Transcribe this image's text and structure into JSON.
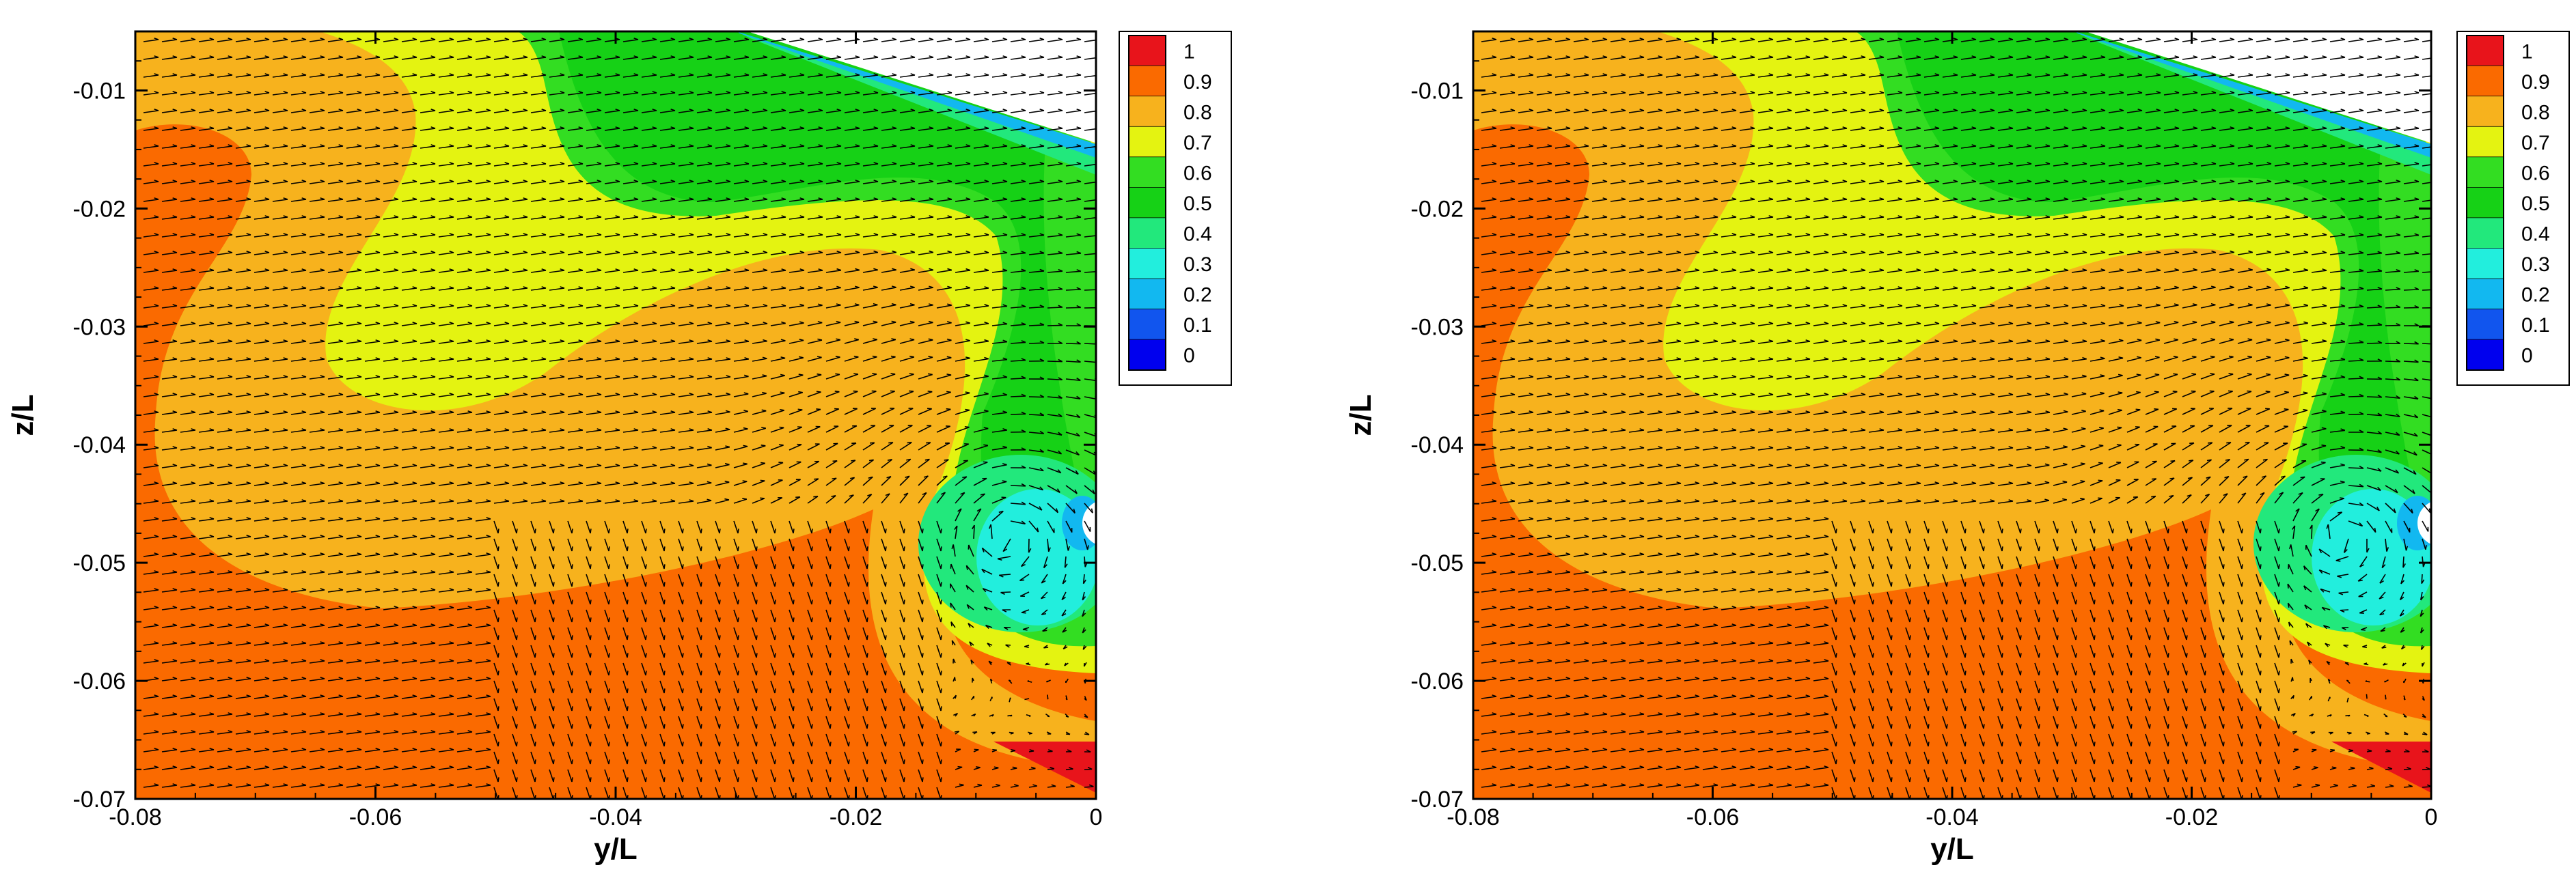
{
  "chart_data": [
    {
      "type": "contour",
      "xlabel": "y/L",
      "ylabel": "z/L",
      "xlim": [
        -0.08,
        0
      ],
      "ylim": [
        -0.07,
        -0.005
      ],
      "x_ticks": [
        "-0.08",
        "-0.06",
        "-0.04",
        "-0.02",
        "0"
      ],
      "y_ticks": [
        "-0.01",
        "-0.02",
        "-0.03",
        "-0.04",
        "-0.05",
        "-0.06",
        "-0.07"
      ],
      "legend": {
        "placement": "right",
        "levels": [
          "1",
          "0.9",
          "0.8",
          "0.7",
          "0.6",
          "0.5",
          "0.4",
          "0.3",
          "0.2",
          "0.1",
          "0"
        ]
      },
      "overlay": "velocity vectors (arrows)"
    },
    {
      "type": "contour",
      "xlabel": "y/L",
      "ylabel": "z/L",
      "xlim": [
        -0.08,
        0
      ],
      "ylim": [
        -0.07,
        -0.005
      ],
      "x_ticks": [
        "-0.08",
        "-0.06",
        "-0.04",
        "-0.02",
        "0"
      ],
      "y_ticks": [
        "-0.01",
        "-0.02",
        "-0.03",
        "-0.04",
        "-0.05",
        "-0.06",
        "-0.07"
      ],
      "legend": {
        "placement": "right",
        "levels": [
          "1",
          "0.9",
          "0.8",
          "0.7",
          "0.6",
          "0.5",
          "0.4",
          "0.3",
          "0.2",
          "0.1",
          "0"
        ]
      },
      "overlay": "velocity vectors (arrows)"
    }
  ],
  "colors": {
    "level_1": "#e8141b",
    "level_0_9": "#fa6a00",
    "level_0_8": "#f7b21d",
    "level_0_7": "#e4f311",
    "level_0_6": "#33dd22",
    "level_0_5": "#16d116",
    "level_0_4": "#22e87c",
    "level_0_3": "#22eedd",
    "level_0_2": "#12b8f0",
    "level_0_1": "#1155ee",
    "level_0": "#0000ee"
  }
}
